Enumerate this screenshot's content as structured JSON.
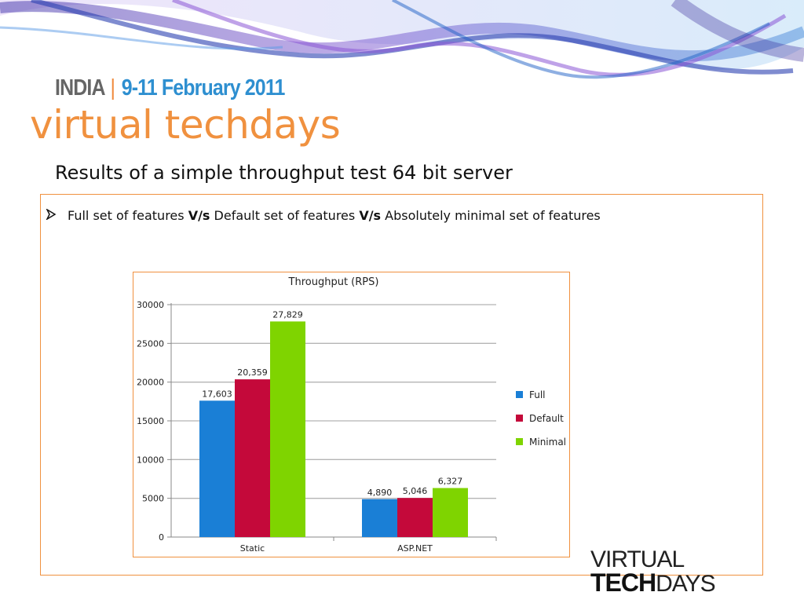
{
  "header": {
    "country": "INDIA",
    "separator": "|",
    "dates": "9-11  February 2011",
    "brand": "virtual techdays"
  },
  "slide": {
    "title": "Results of a simple throughput test 64 bit server",
    "bullet": {
      "part1": "Full set of features ",
      "vs1": "V/s",
      "part2": " Default set of features ",
      "vs2": "V/s",
      "part3": " Absolutely minimal set of features"
    }
  },
  "logo": {
    "line1": "VIRTUAL",
    "line2_bold": "TECH",
    "line2_light": "DAYS"
  },
  "colors": {
    "accent_orange": "#f0913f",
    "blue_text": "#2e8fd0",
    "full": "#1a7fd6",
    "default": "#c4093a",
    "minimal": "#7fd400"
  },
  "chart_data": {
    "type": "bar",
    "title": "Throughput (RPS)",
    "categories": [
      "Static",
      "ASP.NET"
    ],
    "series": [
      {
        "name": "Full",
        "values": [
          17603,
          4890
        ],
        "labels": [
          "17,603",
          "4,890"
        ],
        "color": "#1a7fd6"
      },
      {
        "name": "Default",
        "values": [
          20359,
          5046
        ],
        "labels": [
          "20,359",
          "5,046"
        ],
        "color": "#c4093a"
      },
      {
        "name": "Minimal",
        "values": [
          27829,
          6327
        ],
        "labels": [
          "27,829",
          "6,327"
        ],
        "color": "#7fd400"
      }
    ],
    "ylim": [
      0,
      30000
    ],
    "yticks": [
      "0",
      "5000",
      "10000",
      "15000",
      "20000",
      "25000",
      "30000"
    ],
    "grid": true,
    "legend": "right"
  }
}
